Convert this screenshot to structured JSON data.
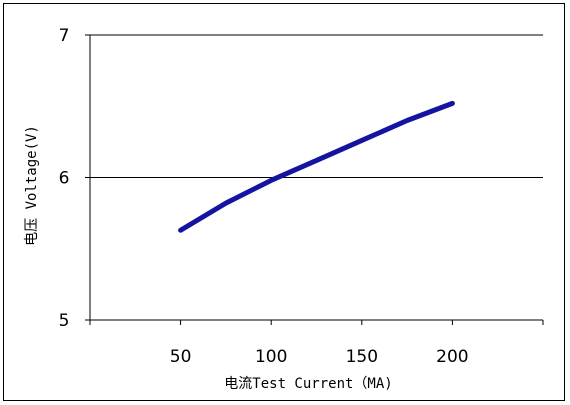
{
  "chart_data": {
    "type": "line",
    "title": "",
    "xlabel": "电流Test Current（MA)",
    "ylabel": "电压 Voltage(V)",
    "xlim": [
      0,
      250
    ],
    "ylim": [
      5,
      7
    ],
    "x_ticks": [
      50,
      100,
      150,
      200
    ],
    "x_tick_labels": [
      "50",
      "100",
      "150",
      "200"
    ],
    "y_ticks": [
      5,
      6,
      7
    ],
    "y_tick_labels": [
      "5",
      "6",
      "7"
    ],
    "grid": "horizontal at y=6 and y=7",
    "legend": "none",
    "series": [
      {
        "x": [
          50,
          75,
          100,
          125,
          150,
          175,
          200
        ],
        "y": [
          5.63,
          5.82,
          5.98,
          6.12,
          6.26,
          6.4,
          6.52
        ],
        "color": "#1414a0"
      }
    ],
    "colors": {
      "line": "#1414a0",
      "axis": "#000000",
      "background": "#ffffff"
    }
  }
}
